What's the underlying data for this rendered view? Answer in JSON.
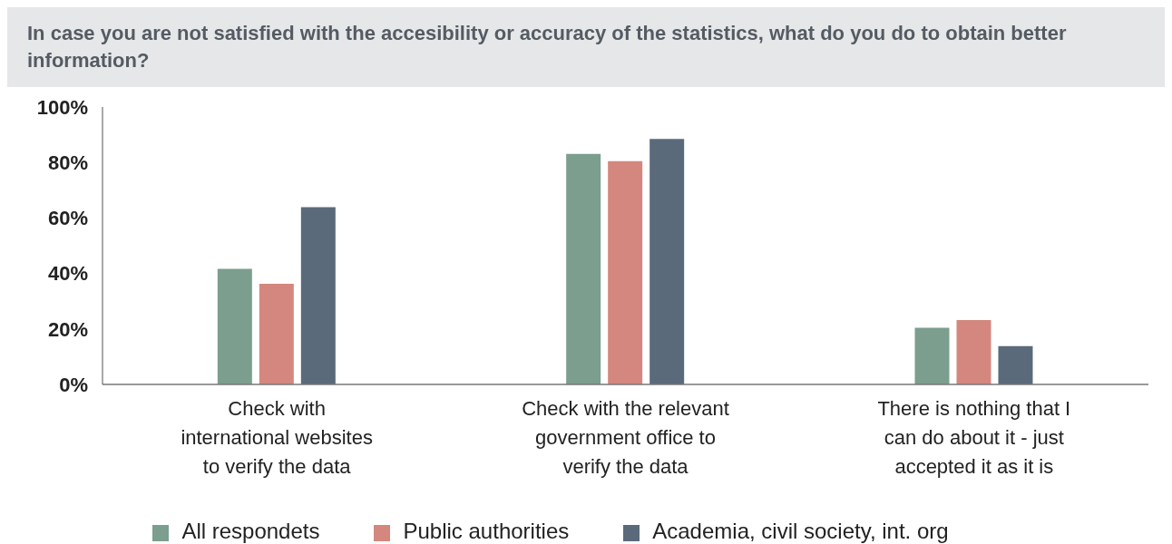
{
  "chart_data": {
    "type": "bar",
    "title": "In case you are not satisfied with the accesibility or accuracy of the statistics, what do you do to obtain better information?",
    "categories": [
      "Check with international websites to verify the data",
      "Check with the relevant government office to verify the data",
      "There is nothing that I can do about it - just accepted it as it is"
    ],
    "series": [
      {
        "name": "All respondets",
        "color": "#7b9e8f",
        "values": [
          41.7,
          83.1,
          20.4
        ]
      },
      {
        "name": "Public authorities",
        "color": "#d4877e",
        "values": [
          36.3,
          80.5,
          23.2
        ]
      },
      {
        "name": "Academia, civil society, int. org",
        "color": "#5a6a7b",
        "values": [
          63.9,
          88.5,
          13.8
        ]
      }
    ],
    "ylim": [
      0,
      100
    ],
    "yticks": [
      {
        "value": 0,
        "label": "0%"
      },
      {
        "value": 20,
        "label": "20%"
      },
      {
        "value": 40,
        "label": "40%"
      },
      {
        "value": 60,
        "label": "60%"
      },
      {
        "value": 80,
        "label": "80%"
      },
      {
        "value": 100,
        "label": "100%"
      }
    ],
    "grid": false,
    "legend": "bottom"
  }
}
